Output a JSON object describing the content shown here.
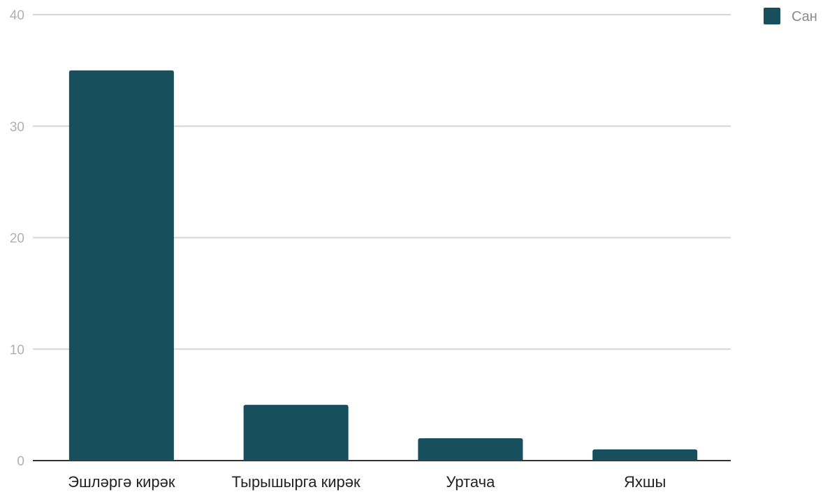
{
  "chart_data": {
    "type": "bar",
    "categories": [
      "Эшләргә кирәк",
      "Тырышырга кирәк",
      "Уртача",
      "Яхшы"
    ],
    "series": [
      {
        "name": "Сан",
        "values": [
          35,
          5,
          2,
          1
        ],
        "color": "#174f5c"
      }
    ],
    "title": "",
    "xlabel": "",
    "ylabel": "",
    "ylim": [
      0,
      40
    ],
    "yticks": [
      "0",
      "10",
      "20",
      "30",
      "40"
    ],
    "grid": true,
    "legend_position": "top-right"
  }
}
